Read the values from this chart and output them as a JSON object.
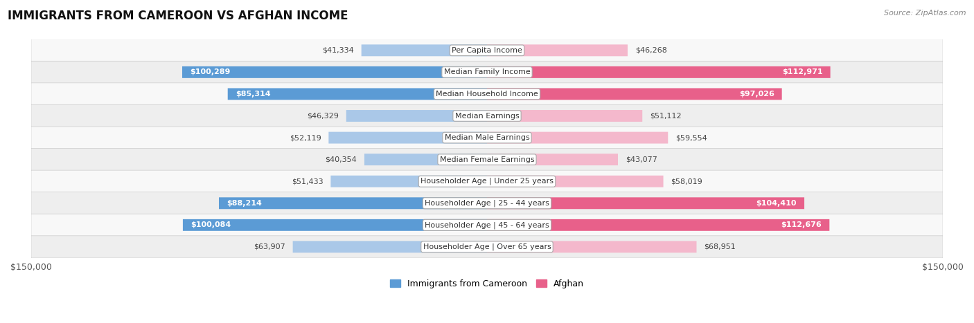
{
  "title": "IMMIGRANTS FROM CAMEROON VS AFGHAN INCOME",
  "source": "Source: ZipAtlas.com",
  "categories": [
    "Per Capita Income",
    "Median Family Income",
    "Median Household Income",
    "Median Earnings",
    "Median Male Earnings",
    "Median Female Earnings",
    "Householder Age | Under 25 years",
    "Householder Age | 25 - 44 years",
    "Householder Age | 45 - 64 years",
    "Householder Age | Over 65 years"
  ],
  "cameroon_values": [
    41334,
    100289,
    85314,
    46329,
    52119,
    40354,
    51433,
    88214,
    100084,
    63907
  ],
  "afghan_values": [
    46268,
    112971,
    97026,
    51112,
    59554,
    43077,
    58019,
    104410,
    112676,
    68951
  ],
  "cameroon_color_light": "#aac8e8",
  "cameroon_color_dark": "#5b9bd5",
  "afghan_color_light": "#f4b8cc",
  "afghan_color_dark": "#e8608a",
  "inside_threshold": 75000,
  "row_bg_alt": "#eeeeee",
  "row_bg_main": "#f8f8f8",
  "max_value": 150000,
  "legend_cameroon": "Immigrants from Cameroon",
  "legend_afghan": "Afghan",
  "xlabel_left": "$150,000",
  "xlabel_right": "$150,000",
  "title_fontsize": 12,
  "label_fontsize": 8,
  "cat_fontsize": 8
}
